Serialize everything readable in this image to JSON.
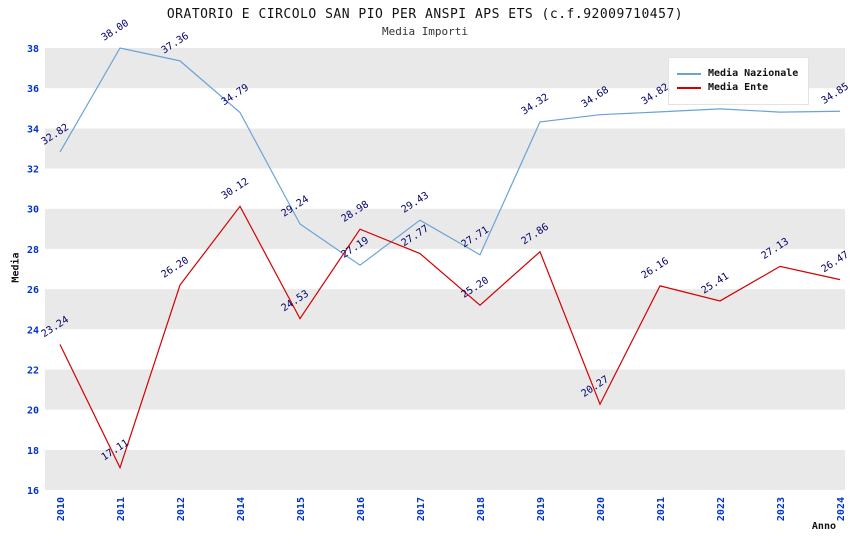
{
  "title": "ORATORIO E CIRCOLO SAN PIO PER ANSPI APS ETS (c.f.92009710457)",
  "subtitle": "Media Importi",
  "chart_data": {
    "type": "line",
    "categories": [
      "2010",
      "2011",
      "2012",
      "2014",
      "2015",
      "2016",
      "2017",
      "2018",
      "2019",
      "2020",
      "2021",
      "2022",
      "2023",
      "2024"
    ],
    "series": [
      {
        "name": "Media Nazionale",
        "color": "#6ba3d6",
        "values": [
          32.82,
          38.0,
          37.36,
          34.79,
          29.24,
          27.19,
          29.43,
          27.71,
          34.32,
          34.68,
          34.82,
          34.97,
          34.81,
          34.85
        ]
      },
      {
        "name": "Media Ente",
        "color": "#d40000",
        "values": [
          23.24,
          17.11,
          26.2,
          30.12,
          24.53,
          28.98,
          27.77,
          25.2,
          27.86,
          20.27,
          26.16,
          25.41,
          27.13,
          26.47
        ]
      }
    ],
    "xlabel": "Anno",
    "ylabel": "Media",
    "ylim": [
      16,
      38
    ],
    "ytick": 2,
    "legend_position": "top-right",
    "grid": "horizontal-bands",
    "band_colors": [
      "#ffffff",
      "#e9e9e9"
    ],
    "tick_label_color": "#0033cc",
    "value_label_color": "#000066"
  }
}
